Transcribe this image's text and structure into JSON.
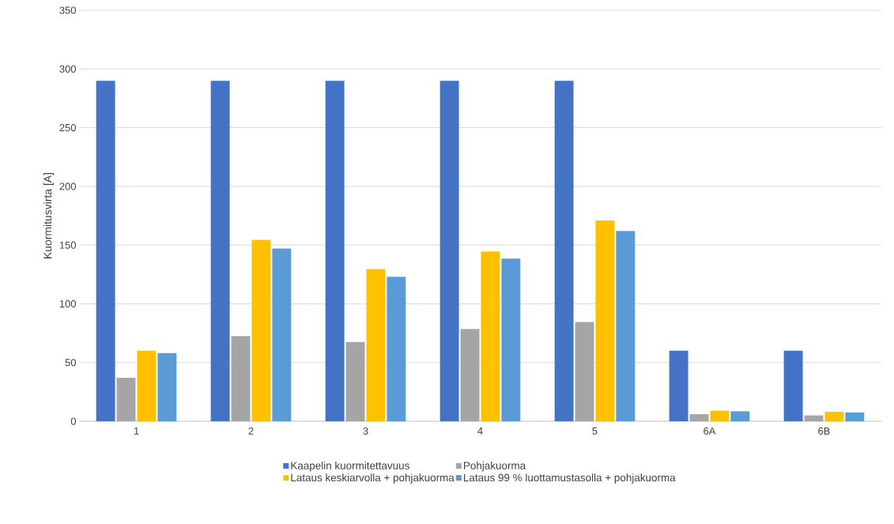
{
  "chart_data": {
    "type": "bar",
    "ylabel": "Kuormitusvirta [A]",
    "categories": [
      "1",
      "2",
      "3",
      "4",
      "5",
      "6A",
      "6B"
    ],
    "ylim": [
      0,
      350
    ],
    "yticks": [
      0,
      50,
      100,
      150,
      200,
      250,
      300,
      350
    ],
    "grid": "y",
    "legend": "bottom",
    "series": [
      {
        "name": "Kaapelin kuormitettavuus",
        "color": "#4472c4",
        "values": [
          290,
          290,
          290,
          290,
          290,
          60,
          60
        ]
      },
      {
        "name": "Pohjakuorma",
        "color": "#a5a5a5",
        "values": [
          37,
          72.5,
          67.5,
          78.5,
          84.5,
          6,
          5
        ]
      },
      {
        "name": "Lataus keskiarvolla + pohjakuorma",
        "color": "#ffc000",
        "values": [
          60,
          154.5,
          129.5,
          144.5,
          171,
          9,
          8
        ]
      },
      {
        "name": "Lataus 99 % luottamustasolla + pohjakuorma",
        "color": "#5b9bd5",
        "values": [
          58,
          147,
          123,
          138.5,
          162,
          8.5,
          7.5
        ]
      }
    ]
  }
}
